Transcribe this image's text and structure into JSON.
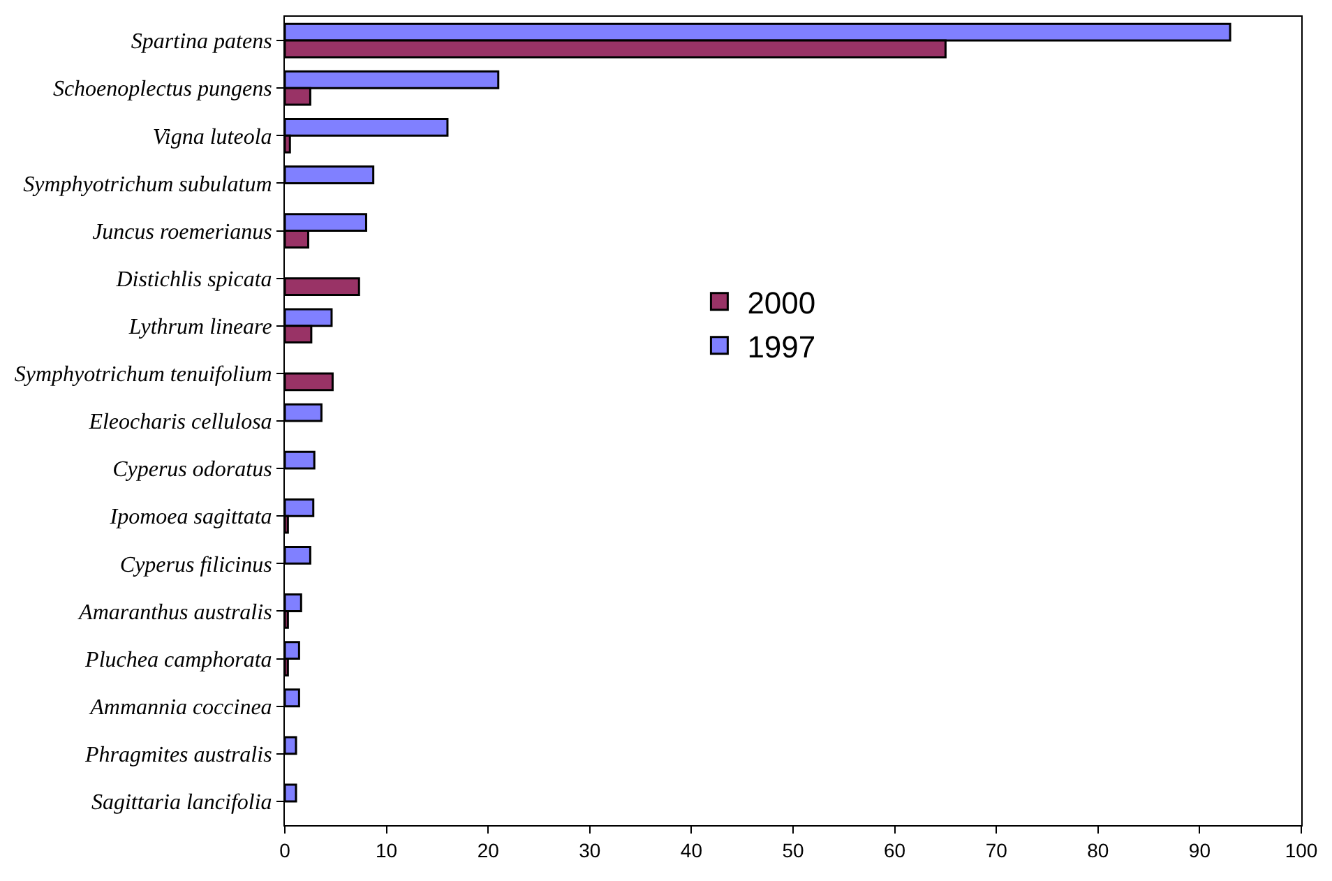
{
  "chart_data": {
    "type": "bar",
    "orientation": "horizontal",
    "categories": [
      "Spartina patens",
      "Schoenoplectus pungens",
      "Vigna luteola",
      "Symphyotrichum subulatum",
      "Juncus roemerianus",
      "Distichlis spicata",
      "Lythrum lineare",
      "Symphyotrichum tenuifolium",
      "Eleocharis cellulosa",
      "Cyperus odoratus",
      "Ipomoea sagittata",
      "Cyperus filicinus",
      "Amaranthus australis",
      "Pluchea camphorata",
      "Ammannia coccinea",
      "Phragmites australis",
      "Sagittaria lancifolia"
    ],
    "series": [
      {
        "name": "1997",
        "color": "#8080ff",
        "values": [
          93,
          21,
          16,
          8.7,
          8,
          null,
          4.6,
          null,
          3.6,
          2.9,
          2.8,
          2.5,
          1.6,
          1.4,
          1.4,
          1.1,
          1.1
        ]
      },
      {
        "name": "2000",
        "color": "#993366",
        "values": [
          65,
          2.5,
          0.5,
          null,
          2.3,
          7.3,
          2.6,
          4.7,
          null,
          null,
          0.3,
          null,
          0.3,
          0.3,
          null,
          null,
          null
        ]
      }
    ],
    "xlim": [
      0,
      100
    ],
    "xticks": [
      0,
      10,
      20,
      30,
      40,
      50,
      60,
      70,
      80,
      90,
      100
    ],
    "grid": false,
    "legend": "center"
  }
}
